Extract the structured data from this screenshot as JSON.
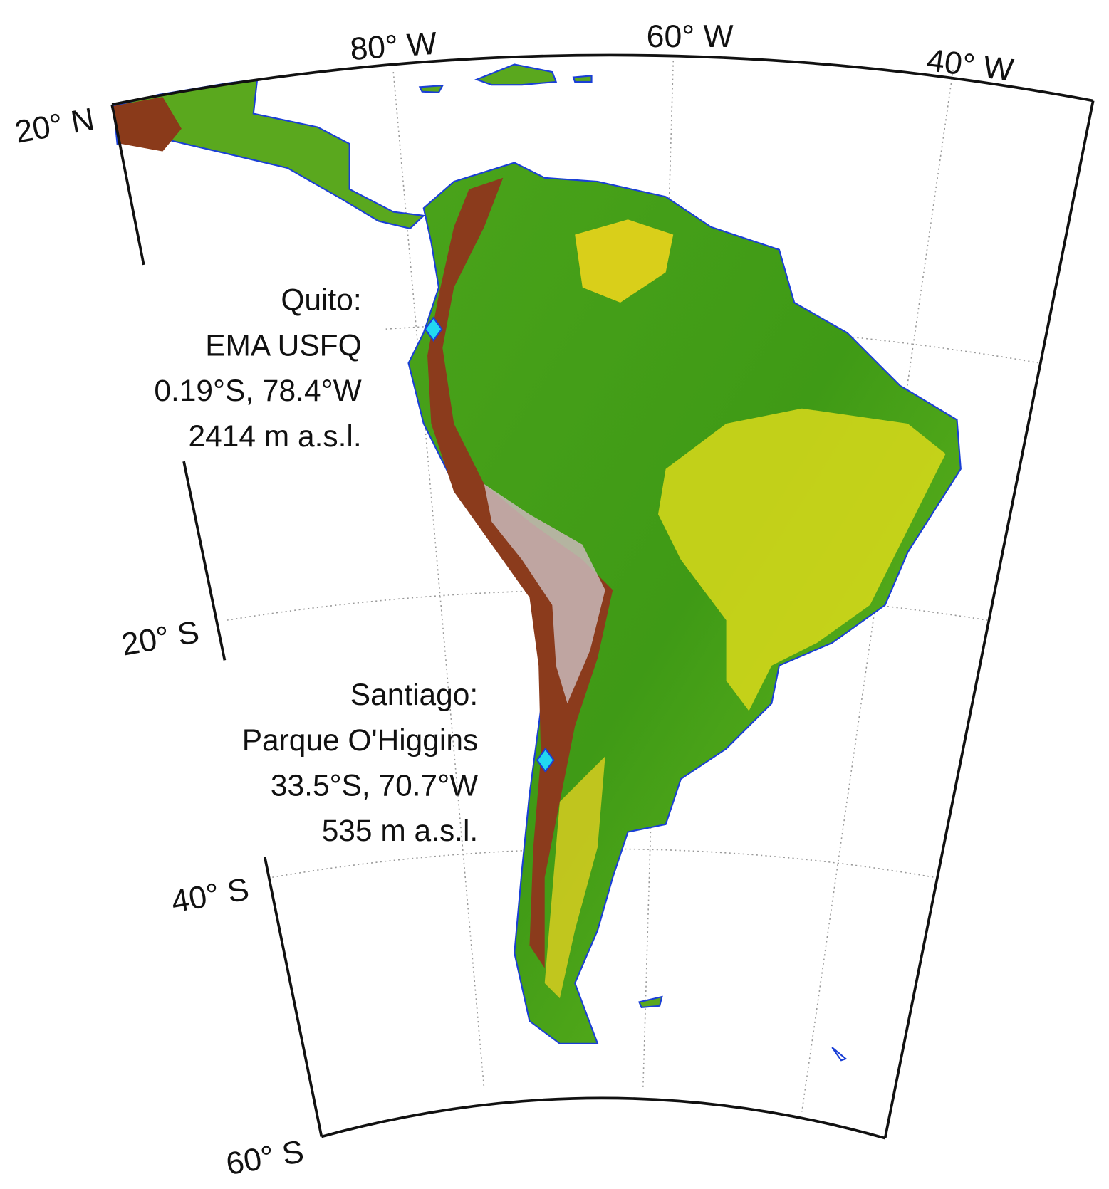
{
  "map": {
    "longitude_labels": [
      "80° W",
      "60° W",
      "40° W"
    ],
    "latitude_labels": [
      "20° N",
      "20° S",
      "40° S",
      "60° S"
    ],
    "stations": [
      {
        "lines": [
          "Quito:",
          "EMA USFQ",
          "0.19°S, 78.4°W",
          "2414 m a.s.l."
        ]
      },
      {
        "lines": [
          "Santiago:",
          "Parque O'Higgins",
          "33.5°S, 70.7°W",
          "535 m a.s.l."
        ]
      }
    ]
  }
}
